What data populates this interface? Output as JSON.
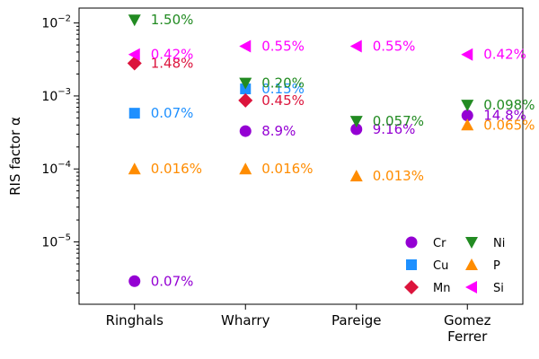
{
  "chart_data": {
    "type": "scatter",
    "yscale": "log",
    "ylim": [
      1.4e-06,
      0.016
    ],
    "ylabel": "RIS factor α",
    "ytick_labels": [
      {
        "value": 0.01,
        "base": "10",
        "exp": "−2"
      },
      {
        "value": 0.001,
        "base": "10",
        "exp": "−3"
      },
      {
        "value": 0.0001,
        "base": "10",
        "exp": "−4"
      },
      {
        "value": 1e-05,
        "base": "10",
        "exp": "−5"
      }
    ],
    "categories": [
      {
        "name": "Ringhals",
        "lines": [
          "Ringhals"
        ]
      },
      {
        "name": "Wharry",
        "lines": [
          "Wharry"
        ]
      },
      {
        "name": "Pareige",
        "lines": [
          "Pareige"
        ]
      },
      {
        "name": "Gomez Ferrer",
        "lines": [
          "Gomez",
          "Ferrer"
        ]
      }
    ],
    "series": [
      {
        "name": "Cr",
        "color": "#9400d3",
        "marker": "circle",
        "points": [
          {
            "category": "Ringhals",
            "value": 2.9e-06,
            "label": "0.07%"
          },
          {
            "category": "Wharry",
            "value": 0.00033,
            "label": "8.9%"
          },
          {
            "category": "Pareige",
            "value": 0.00035,
            "label": "9.16%"
          },
          {
            "category": "Gomez Ferrer",
            "value": 0.00054,
            "label": "14.8%"
          }
        ]
      },
      {
        "name": "Cu",
        "color": "#1e90ff",
        "marker": "square",
        "points": [
          {
            "category": "Ringhals",
            "value": 0.00058,
            "label": "0.07%"
          },
          {
            "category": "Wharry",
            "value": 0.00125,
            "label": "0.15%"
          }
        ]
      },
      {
        "name": "Mn",
        "color": "#dc143c",
        "marker": "diamond",
        "points": [
          {
            "category": "Ringhals",
            "value": 0.0028,
            "label": "1.48%"
          },
          {
            "category": "Wharry",
            "value": 0.00087,
            "label": "0.45%"
          }
        ]
      },
      {
        "name": "Ni",
        "color": "#228b22",
        "marker": "triangle-down",
        "points": [
          {
            "category": "Ringhals",
            "value": 0.011,
            "label": "1.50%"
          },
          {
            "category": "Wharry",
            "value": 0.0015,
            "label": "0.20%"
          },
          {
            "category": "Pareige",
            "value": 0.00045,
            "label": "0.057%"
          },
          {
            "category": "Gomez Ferrer",
            "value": 0.00075,
            "label": "0.098%"
          }
        ]
      },
      {
        "name": "P",
        "color": "#ff8c00",
        "marker": "triangle-up",
        "points": [
          {
            "category": "Ringhals",
            "value": 0.0001,
            "label": "0.016%"
          },
          {
            "category": "Wharry",
            "value": 0.0001,
            "label": "0.016%"
          },
          {
            "category": "Pareige",
            "value": 8e-05,
            "label": "0.013%"
          },
          {
            "category": "Gomez Ferrer",
            "value": 0.0004,
            "label": "0.065%"
          }
        ]
      },
      {
        "name": "Si",
        "color": "#ff00ff",
        "marker": "triangle-left",
        "points": [
          {
            "category": "Ringhals",
            "value": 0.0037,
            "label": "0.42%"
          },
          {
            "category": "Wharry",
            "value": 0.0048,
            "label": "0.55%"
          },
          {
            "category": "Pareige",
            "value": 0.0048,
            "label": "0.55%"
          },
          {
            "category": "Gomez Ferrer",
            "value": 0.0037,
            "label": "0.42%"
          }
        ]
      }
    ],
    "legend": {
      "placement": "lower-right",
      "columns": 2,
      "order": [
        "Cr",
        "Cu",
        "Mn",
        "Ni",
        "P",
        "Si"
      ]
    },
    "grid": false
  }
}
